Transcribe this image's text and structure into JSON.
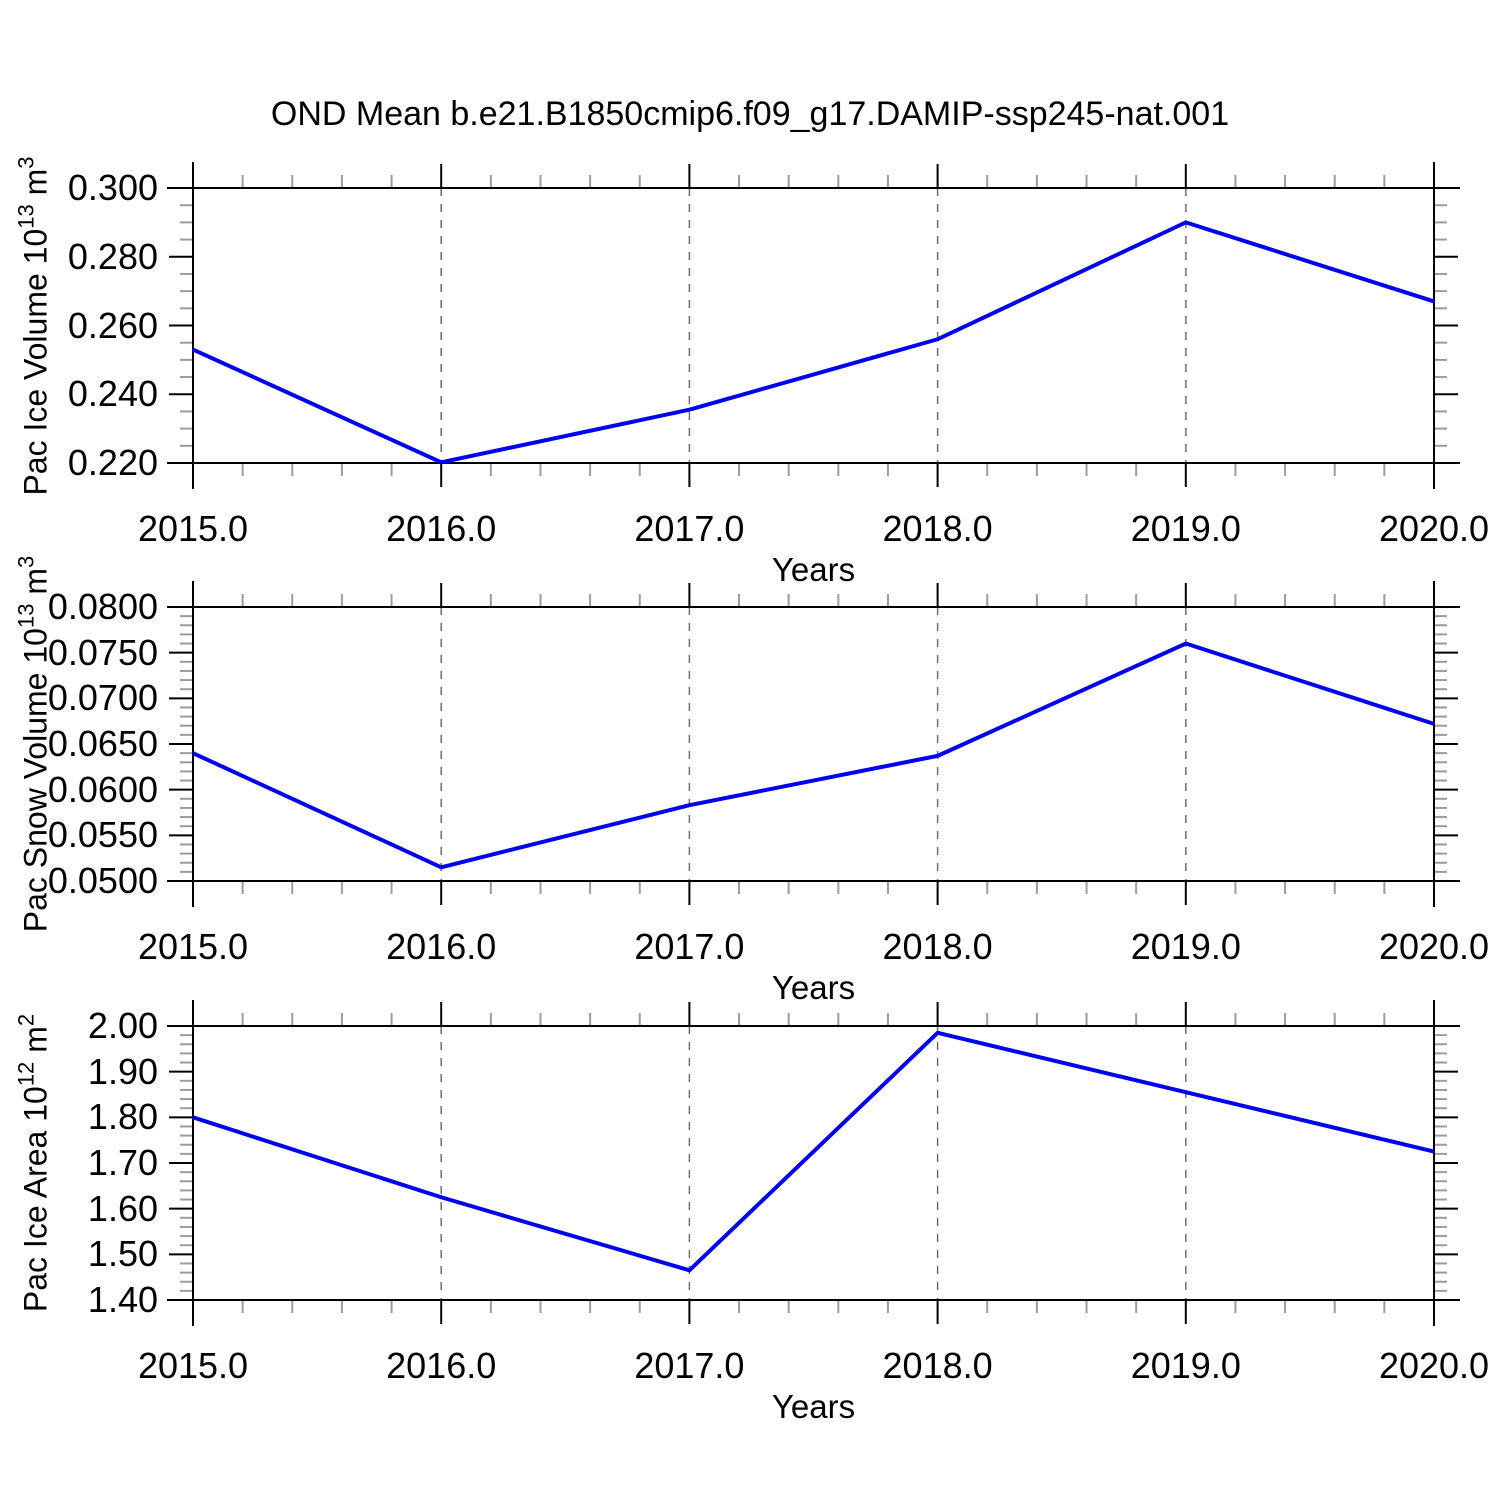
{
  "title": "OND Mean b.e21.B1850cmip6.f09_g17.DAMIP-ssp245-nat.001",
  "colors": {
    "line": "#0000EE",
    "frame": "#000000",
    "major_tick": "#000000",
    "minor_tick": "#9c9c9c",
    "grid": "#6e6e6e",
    "background": "#ffffff"
  },
  "chart_data": [
    {
      "type": "line",
      "panel": "ice-volume",
      "x": [
        2015,
        2016,
        2017,
        2018,
        2019,
        2020
      ],
      "values": [
        0.253,
        0.2202,
        0.2355,
        0.256,
        0.29,
        0.267
      ],
      "xlabel": "Years",
      "ylabel": "Pac Ice Volume 10^13 m^3",
      "ylabel_parts": [
        {
          "text": "Pac Ice Volume 10",
          "sup": false
        },
        {
          "text": "13",
          "sup": true
        },
        {
          "text": " m",
          "sup": false
        },
        {
          "text": "3",
          "sup": true
        }
      ],
      "xlim": [
        2015,
        2020
      ],
      "ylim": [
        0.22,
        0.3
      ],
      "xticks": [
        {
          "v": 2015,
          "label": "2015.0"
        },
        {
          "v": 2016,
          "label": "2016.0"
        },
        {
          "v": 2017,
          "label": "2017.0"
        },
        {
          "v": 2018,
          "label": "2018.0"
        },
        {
          "v": 2019,
          "label": "2019.0"
        },
        {
          "v": 2020,
          "label": "2020.0"
        }
      ],
      "yticks": [
        {
          "v": 0.22,
          "label": "0.220"
        },
        {
          "v": 0.24,
          "label": "0.240"
        },
        {
          "v": 0.26,
          "label": "0.260"
        },
        {
          "v": 0.28,
          "label": "0.280"
        },
        {
          "v": 0.3,
          "label": "0.300"
        }
      ],
      "x_minor_step": 0.2,
      "y_minor_step": 0.005,
      "grid_x": [
        2016,
        2017,
        2018,
        2019
      ],
      "legend": "none",
      "grid_on": "vertical-dashed-only"
    },
    {
      "type": "line",
      "panel": "snow-volume",
      "x": [
        2015,
        2016,
        2017,
        2018,
        2019,
        2020
      ],
      "values": [
        0.064,
        0.0515,
        0.0583,
        0.0637,
        0.076,
        0.0672
      ],
      "xlabel": "Years",
      "ylabel": "Pac Snow Volume 10^13 m^3",
      "ylabel_parts": [
        {
          "text": "Pac Snow Volume 10",
          "sup": false
        },
        {
          "text": "13",
          "sup": true
        },
        {
          "text": " m",
          "sup": false
        },
        {
          "text": "3",
          "sup": true
        }
      ],
      "xlim": [
        2015,
        2020
      ],
      "ylim": [
        0.05,
        0.08
      ],
      "xticks": [
        {
          "v": 2015,
          "label": "2015.0"
        },
        {
          "v": 2016,
          "label": "2016.0"
        },
        {
          "v": 2017,
          "label": "2017.0"
        },
        {
          "v": 2018,
          "label": "2018.0"
        },
        {
          "v": 2019,
          "label": "2019.0"
        },
        {
          "v": 2020,
          "label": "2020.0"
        }
      ],
      "yticks": [
        {
          "v": 0.05,
          "label": "0.0500"
        },
        {
          "v": 0.055,
          "label": "0.0550"
        },
        {
          "v": 0.06,
          "label": "0.0600"
        },
        {
          "v": 0.065,
          "label": "0.0650"
        },
        {
          "v": 0.07,
          "label": "0.0700"
        },
        {
          "v": 0.075,
          "label": "0.0750"
        },
        {
          "v": 0.08,
          "label": "0.0800"
        }
      ],
      "x_minor_step": 0.2,
      "y_minor_step": 0.001,
      "grid_x": [
        2016,
        2017,
        2018,
        2019
      ],
      "legend": "none",
      "grid_on": "vertical-dashed-only"
    },
    {
      "type": "line",
      "panel": "ice-area",
      "x": [
        2015,
        2016,
        2017,
        2018,
        2019,
        2020
      ],
      "values": [
        1.8,
        1.625,
        1.465,
        1.985,
        1.855,
        1.725
      ],
      "xlabel": "Years",
      "ylabel": "Pac Ice Area 10^12 m^2",
      "ylabel_parts": [
        {
          "text": "Pac Ice Area 10",
          "sup": false
        },
        {
          "text": "12",
          "sup": true
        },
        {
          "text": " m",
          "sup": false
        },
        {
          "text": "2",
          "sup": true
        }
      ],
      "xlim": [
        2015,
        2020
      ],
      "ylim": [
        1.4,
        2.0
      ],
      "xticks": [
        {
          "v": 2015,
          "label": "2015.0"
        },
        {
          "v": 2016,
          "label": "2016.0"
        },
        {
          "v": 2017,
          "label": "2017.0"
        },
        {
          "v": 2018,
          "label": "2018.0"
        },
        {
          "v": 2019,
          "label": "2019.0"
        },
        {
          "v": 2020,
          "label": "2020.0"
        }
      ],
      "yticks": [
        {
          "v": 1.4,
          "label": "1.40"
        },
        {
          "v": 1.5,
          "label": "1.50"
        },
        {
          "v": 1.6,
          "label": "1.60"
        },
        {
          "v": 1.7,
          "label": "1.70"
        },
        {
          "v": 1.8,
          "label": "1.80"
        },
        {
          "v": 1.9,
          "label": "1.90"
        },
        {
          "v": 2.0,
          "label": "2.00"
        }
      ],
      "x_minor_step": 0.2,
      "y_minor_step": 0.02,
      "grid_x": [
        2016,
        2017,
        2018,
        2019
      ],
      "legend": "none",
      "grid_on": "vertical-dashed-only"
    }
  ]
}
